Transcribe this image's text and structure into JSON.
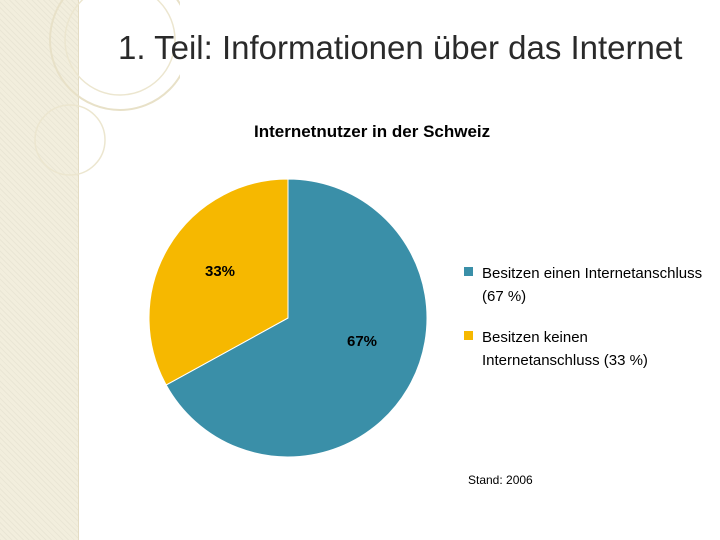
{
  "slide": {
    "title": "1. Teil: Informationen über das Internet"
  },
  "chart_data": {
    "type": "pie",
    "title": "Internetnutzer in der Schweiz",
    "categories": [
      "Besitzen einen Internetanschluss (67 %)",
      "Besitzen keinen Internetanschluss (33 %)"
    ],
    "values": [
      67,
      33
    ],
    "data_labels": [
      "67%",
      "33%"
    ],
    "colors": [
      "#3a8fa8",
      "#f6b800"
    ],
    "legend_position": "right"
  },
  "footnote": "Stand: 2006",
  "theme": {
    "stripe_color": "#f2eedd",
    "deco_ring_color": "#e8e1c8"
  }
}
